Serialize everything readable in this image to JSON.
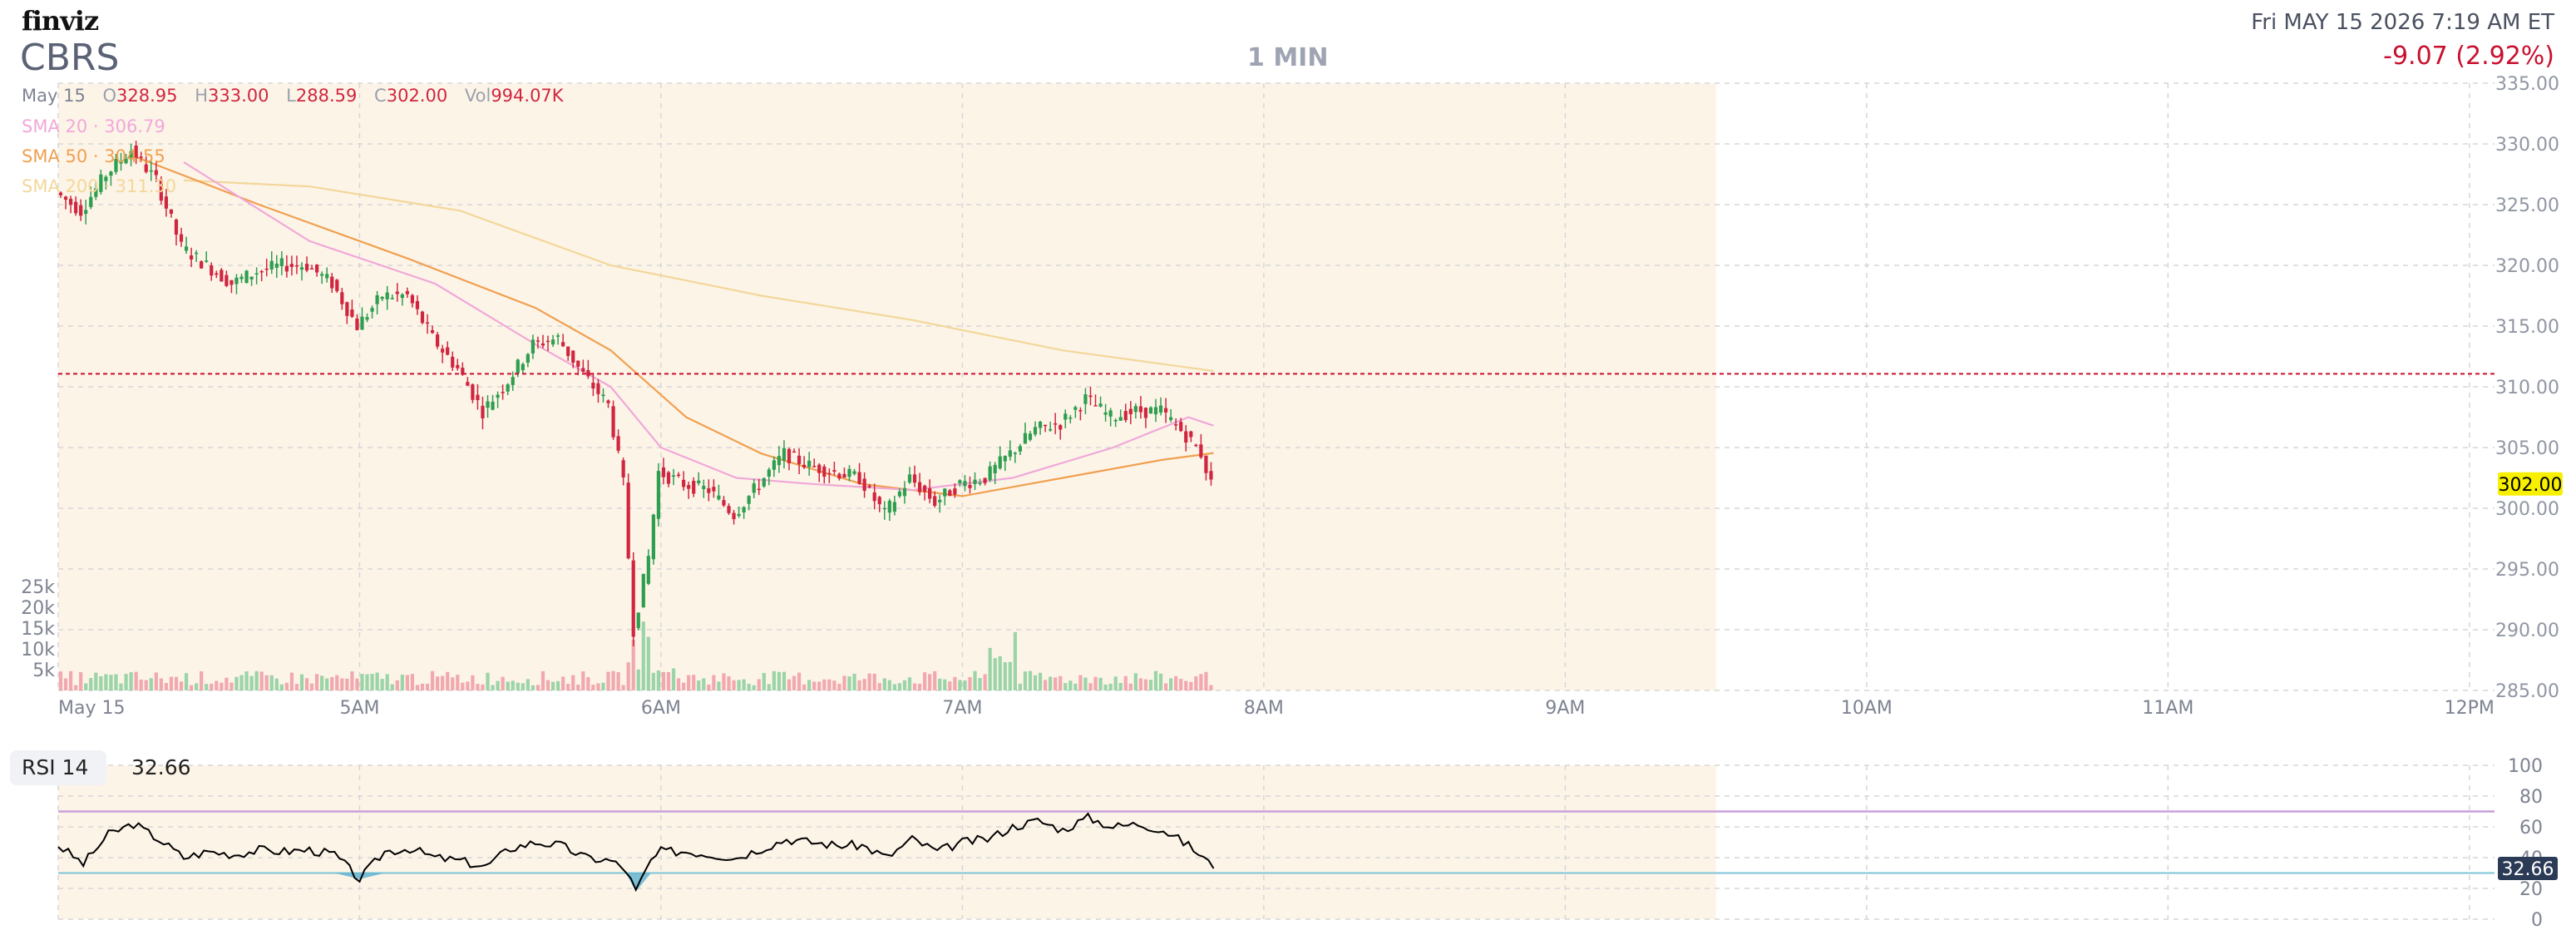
{
  "header": {
    "logo": "finviz",
    "ticker": "CBRS",
    "timeframe": "1 MIN",
    "datetime": "Fri MAY 15 2026 7:19 AM ET",
    "change": "-9.07 (2.92%)"
  },
  "ohlc": {
    "date": "May 15",
    "open_label": "O",
    "open": "328.95",
    "high_label": "H",
    "high": "333.00",
    "low_label": "L",
    "low": "288.59",
    "close_label": "C",
    "close": "302.00",
    "vol_label": "Vol",
    "vol": "994.07K"
  },
  "indicators": {
    "sma20": "SMA 20 · 306.79",
    "sma50": "SMA 50 · 304.55",
    "sma200": "SMA 200 · 311.30"
  },
  "rsi": {
    "name": "RSI 14",
    "value": "32.66"
  },
  "colors": {
    "up": "#2e9e4f",
    "down": "#d0263f",
    "session_bg": "#fdf4e8",
    "sma20": "#f0a8d8",
    "sma50": "#f0a050",
    "sma200": "#f3d79a",
    "prev_close": "#c8102e",
    "rsi_line": "#000000",
    "rsi_upper": "#c9a0dc",
    "rsi_lower": "#7ec3d8",
    "price_badge": "#f7f000"
  },
  "chart_data": [
    {
      "type": "candlestick",
      "title": "",
      "interval": "1 MIN",
      "x_tick_labels": [
        "May 15",
        "5AM",
        "6AM",
        "7AM",
        "8AM",
        "9AM",
        "10AM",
        "11AM",
        "12PM"
      ],
      "x_range": [
        "04:00",
        "12:05"
      ],
      "premarket_session": [
        "04:00",
        "09:30"
      ],
      "y_ticks": [
        "285.00",
        "290.00",
        "295.00",
        "300.00",
        "305.00",
        "310.00",
        "315.00",
        "320.00",
        "325.00",
        "330.00",
        "335.00"
      ],
      "ylim": [
        285,
        335
      ],
      "last_price_label": "302.00",
      "last_price": 302.0,
      "previous_close": 311.07,
      "grid": true,
      "path_points": [
        [
          "04:00",
          326.0
        ],
        [
          "04:05",
          324.5
        ],
        [
          "04:10",
          327.5
        ],
        [
          "04:15",
          329.5
        ],
        [
          "04:20",
          327.0
        ],
        [
          "04:25",
          321.5
        ],
        [
          "04:30",
          320.0
        ],
        [
          "04:35",
          318.5
        ],
        [
          "04:40",
          319.5
        ],
        [
          "04:45",
          320.0
        ],
        [
          "04:50",
          320.0
        ],
        [
          "04:55",
          318.5
        ],
        [
          "05:00",
          315.0
        ],
        [
          "05:05",
          317.5
        ],
        [
          "05:10",
          317.5
        ],
        [
          "05:15",
          314.0
        ],
        [
          "05:20",
          311.5
        ],
        [
          "05:25",
          308.0
        ],
        [
          "05:30",
          310.5
        ],
        [
          "05:35",
          313.5
        ],
        [
          "05:40",
          314.0
        ],
        [
          "05:45",
          311.0
        ],
        [
          "05:50",
          308.5
        ],
        [
          "05:53",
          302.0
        ],
        [
          "05:55",
          290.0
        ],
        [
          "05:58",
          296.0
        ],
        [
          "06:00",
          303.0
        ],
        [
          "06:05",
          302.0
        ],
        [
          "06:10",
          301.5
        ],
        [
          "06:15",
          299.5
        ],
        [
          "06:20",
          302.0
        ],
        [
          "06:25",
          304.5
        ],
        [
          "06:30",
          303.5
        ],
        [
          "06:35",
          303.0
        ],
        [
          "06:40",
          302.5
        ],
        [
          "06:45",
          299.5
        ],
        [
          "06:50",
          302.5
        ],
        [
          "06:55",
          300.5
        ],
        [
          "07:00",
          302.0
        ],
        [
          "07:05",
          302.5
        ],
        [
          "07:10",
          304.5
        ],
        [
          "07:15",
          306.5
        ],
        [
          "07:20",
          307.0
        ],
        [
          "07:25",
          309.0
        ],
        [
          "07:30",
          307.5
        ],
        [
          "07:35",
          308.0
        ],
        [
          "07:40",
          308.0
        ],
        [
          "07:45",
          306.0
        ],
        [
          "07:48",
          304.5
        ],
        [
          "07:50",
          302.0
        ]
      ],
      "sma20": [
        [
          "04:25",
          328.5
        ],
        [
          "04:50",
          322.0
        ],
        [
          "05:15",
          318.5
        ],
        [
          "05:35",
          313.5
        ],
        [
          "05:50",
          310.0
        ],
        [
          "06:00",
          305.0
        ],
        [
          "06:15",
          302.5
        ],
        [
          "06:30",
          302.0
        ],
        [
          "06:50",
          301.5
        ],
        [
          "07:10",
          302.5
        ],
        [
          "07:30",
          305.0
        ],
        [
          "07:45",
          307.5
        ],
        [
          "07:50",
          306.8
        ]
      ],
      "sma50": [
        [
          "04:15",
          329.0
        ],
        [
          "04:40",
          325.0
        ],
        [
          "05:10",
          320.5
        ],
        [
          "05:35",
          316.5
        ],
        [
          "05:50",
          313.0
        ],
        [
          "06:05",
          307.5
        ],
        [
          "06:20",
          304.5
        ],
        [
          "06:40",
          302.0
        ],
        [
          "07:00",
          301.0
        ],
        [
          "07:20",
          302.5
        ],
        [
          "07:40",
          304.0
        ],
        [
          "07:50",
          304.55
        ]
      ],
      "sma200": [
        [
          "04:25",
          327.0
        ],
        [
          "04:50",
          326.5
        ],
        [
          "05:20",
          324.5
        ],
        [
          "05:50",
          320.0
        ],
        [
          "06:20",
          317.5
        ],
        [
          "06:50",
          315.5
        ],
        [
          "07:20",
          313.0
        ],
        [
          "07:50",
          311.3
        ]
      ],
      "volume_y_ticks": [
        "5k",
        "10k",
        "15k",
        "20k",
        "25k"
      ],
      "volume_ylim": [
        0,
        28000
      ]
    },
    {
      "type": "line",
      "title": "RSI 14",
      "y_ticks": [
        "0",
        "20",
        "40",
        "60",
        "80",
        "100"
      ],
      "ylim": [
        0,
        100
      ],
      "upper_band": 70,
      "lower_band": 30,
      "last_value_label": "32.66",
      "points": [
        [
          "04:00",
          48
        ],
        [
          "04:05",
          36
        ],
        [
          "04:10",
          55
        ],
        [
          "04:15",
          62
        ],
        [
          "04:20",
          52
        ],
        [
          "04:25",
          40
        ],
        [
          "04:30",
          44
        ],
        [
          "04:35",
          42
        ],
        [
          "04:40",
          45
        ],
        [
          "04:45",
          44
        ],
        [
          "04:50",
          45
        ],
        [
          "04:55",
          42
        ],
        [
          "05:00",
          26
        ],
        [
          "05:05",
          44
        ],
        [
          "05:10",
          46
        ],
        [
          "05:15",
          40
        ],
        [
          "05:20",
          38
        ],
        [
          "05:25",
          34
        ],
        [
          "05:30",
          46
        ],
        [
          "05:35",
          50
        ],
        [
          "05:40",
          48
        ],
        [
          "05:45",
          40
        ],
        [
          "05:50",
          38
        ],
        [
          "05:53",
          32
        ],
        [
          "05:55",
          18
        ],
        [
          "05:58",
          38
        ],
        [
          "06:00",
          44
        ],
        [
          "06:05",
          44
        ],
        [
          "06:10",
          42
        ],
        [
          "06:15",
          40
        ],
        [
          "06:20",
          46
        ],
        [
          "06:25",
          52
        ],
        [
          "06:30",
          50
        ],
        [
          "06:35",
          48
        ],
        [
          "06:40",
          48
        ],
        [
          "06:45",
          40
        ],
        [
          "06:50",
          52
        ],
        [
          "06:55",
          44
        ],
        [
          "07:00",
          50
        ],
        [
          "07:05",
          52
        ],
        [
          "07:10",
          60
        ],
        [
          "07:15",
          64
        ],
        [
          "07:20",
          58
        ],
        [
          "07:25",
          66
        ],
        [
          "07:30",
          60
        ],
        [
          "07:35",
          62
        ],
        [
          "07:40",
          58
        ],
        [
          "07:45",
          48
        ],
        [
          "07:48",
          40
        ],
        [
          "07:50",
          33
        ]
      ]
    }
  ]
}
